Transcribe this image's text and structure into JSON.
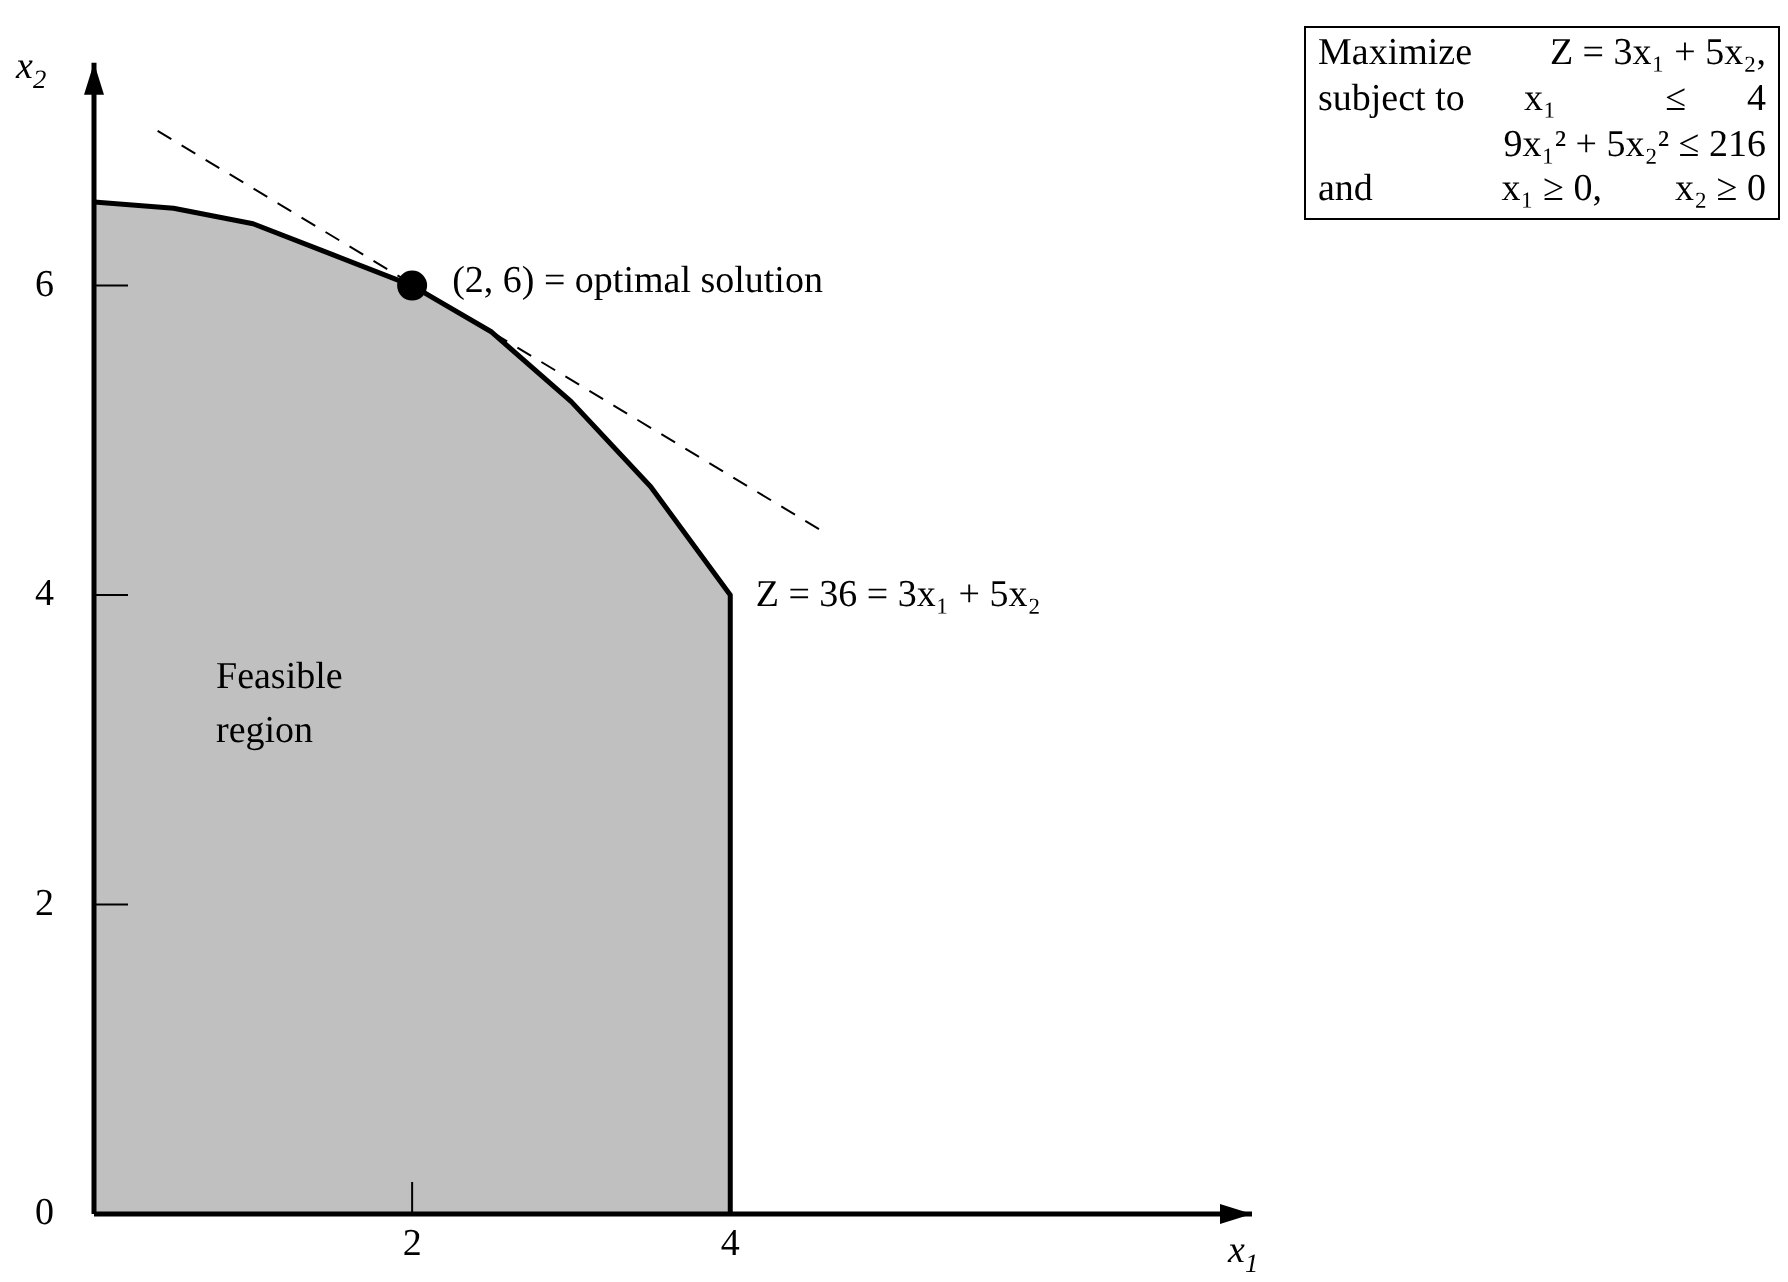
{
  "chart_data": {
    "type": "area",
    "xlabel": "x$_{1}$",
    "ylabel": "x$_{2}$",
    "xlim": [
      0,
      7.28
    ],
    "ylim": [
      0,
      7.44
    ],
    "xticks": [
      2,
      4
    ],
    "yticks": [
      0,
      2,
      4,
      6
    ],
    "grid": false,
    "legend": false,
    "series": [
      {
        "color": "#c0c0c0",
        "x": [
          0,
          0.5,
          1,
          1.5,
          2,
          2.5,
          3,
          3.5,
          4,
          4
        ],
        "values": [
          6.54,
          6.5,
          6.4,
          6.2,
          6,
          5.7,
          5.25,
          4.7,
          4,
          0
        ]
      },
      {
        "type": "line",
        "color": "#000000",
        "line_style": "dashed",
        "x": [
          0.4,
          4.6
        ],
        "values": [
          7.0,
          4.4
        ]
      },
      {
        "type": "scatter",
        "color": "#000000",
        "marker": "circle",
        "x": [
          2
        ],
        "values": [
          6
        ]
      }
    ],
    "annotations": [
      {
        "text": "(2, 6) = optimal solution",
        "x": 2,
        "y": 6
      },
      {
        "text": "Z = 36 = 3x₁ + 5x₂",
        "x": 4.6,
        "y": 4.4
      },
      "Feasible region",
      "Maximize",
      "Z = 3x₁ + 5x₂,",
      "subject to",
      "x₁",
      "≤",
      "4",
      "9x₁² + 5x₂² ≤ 216",
      "and",
      "x₁ ≥ 0,",
      "x₂ ≥ 0"
    ]
  }
}
